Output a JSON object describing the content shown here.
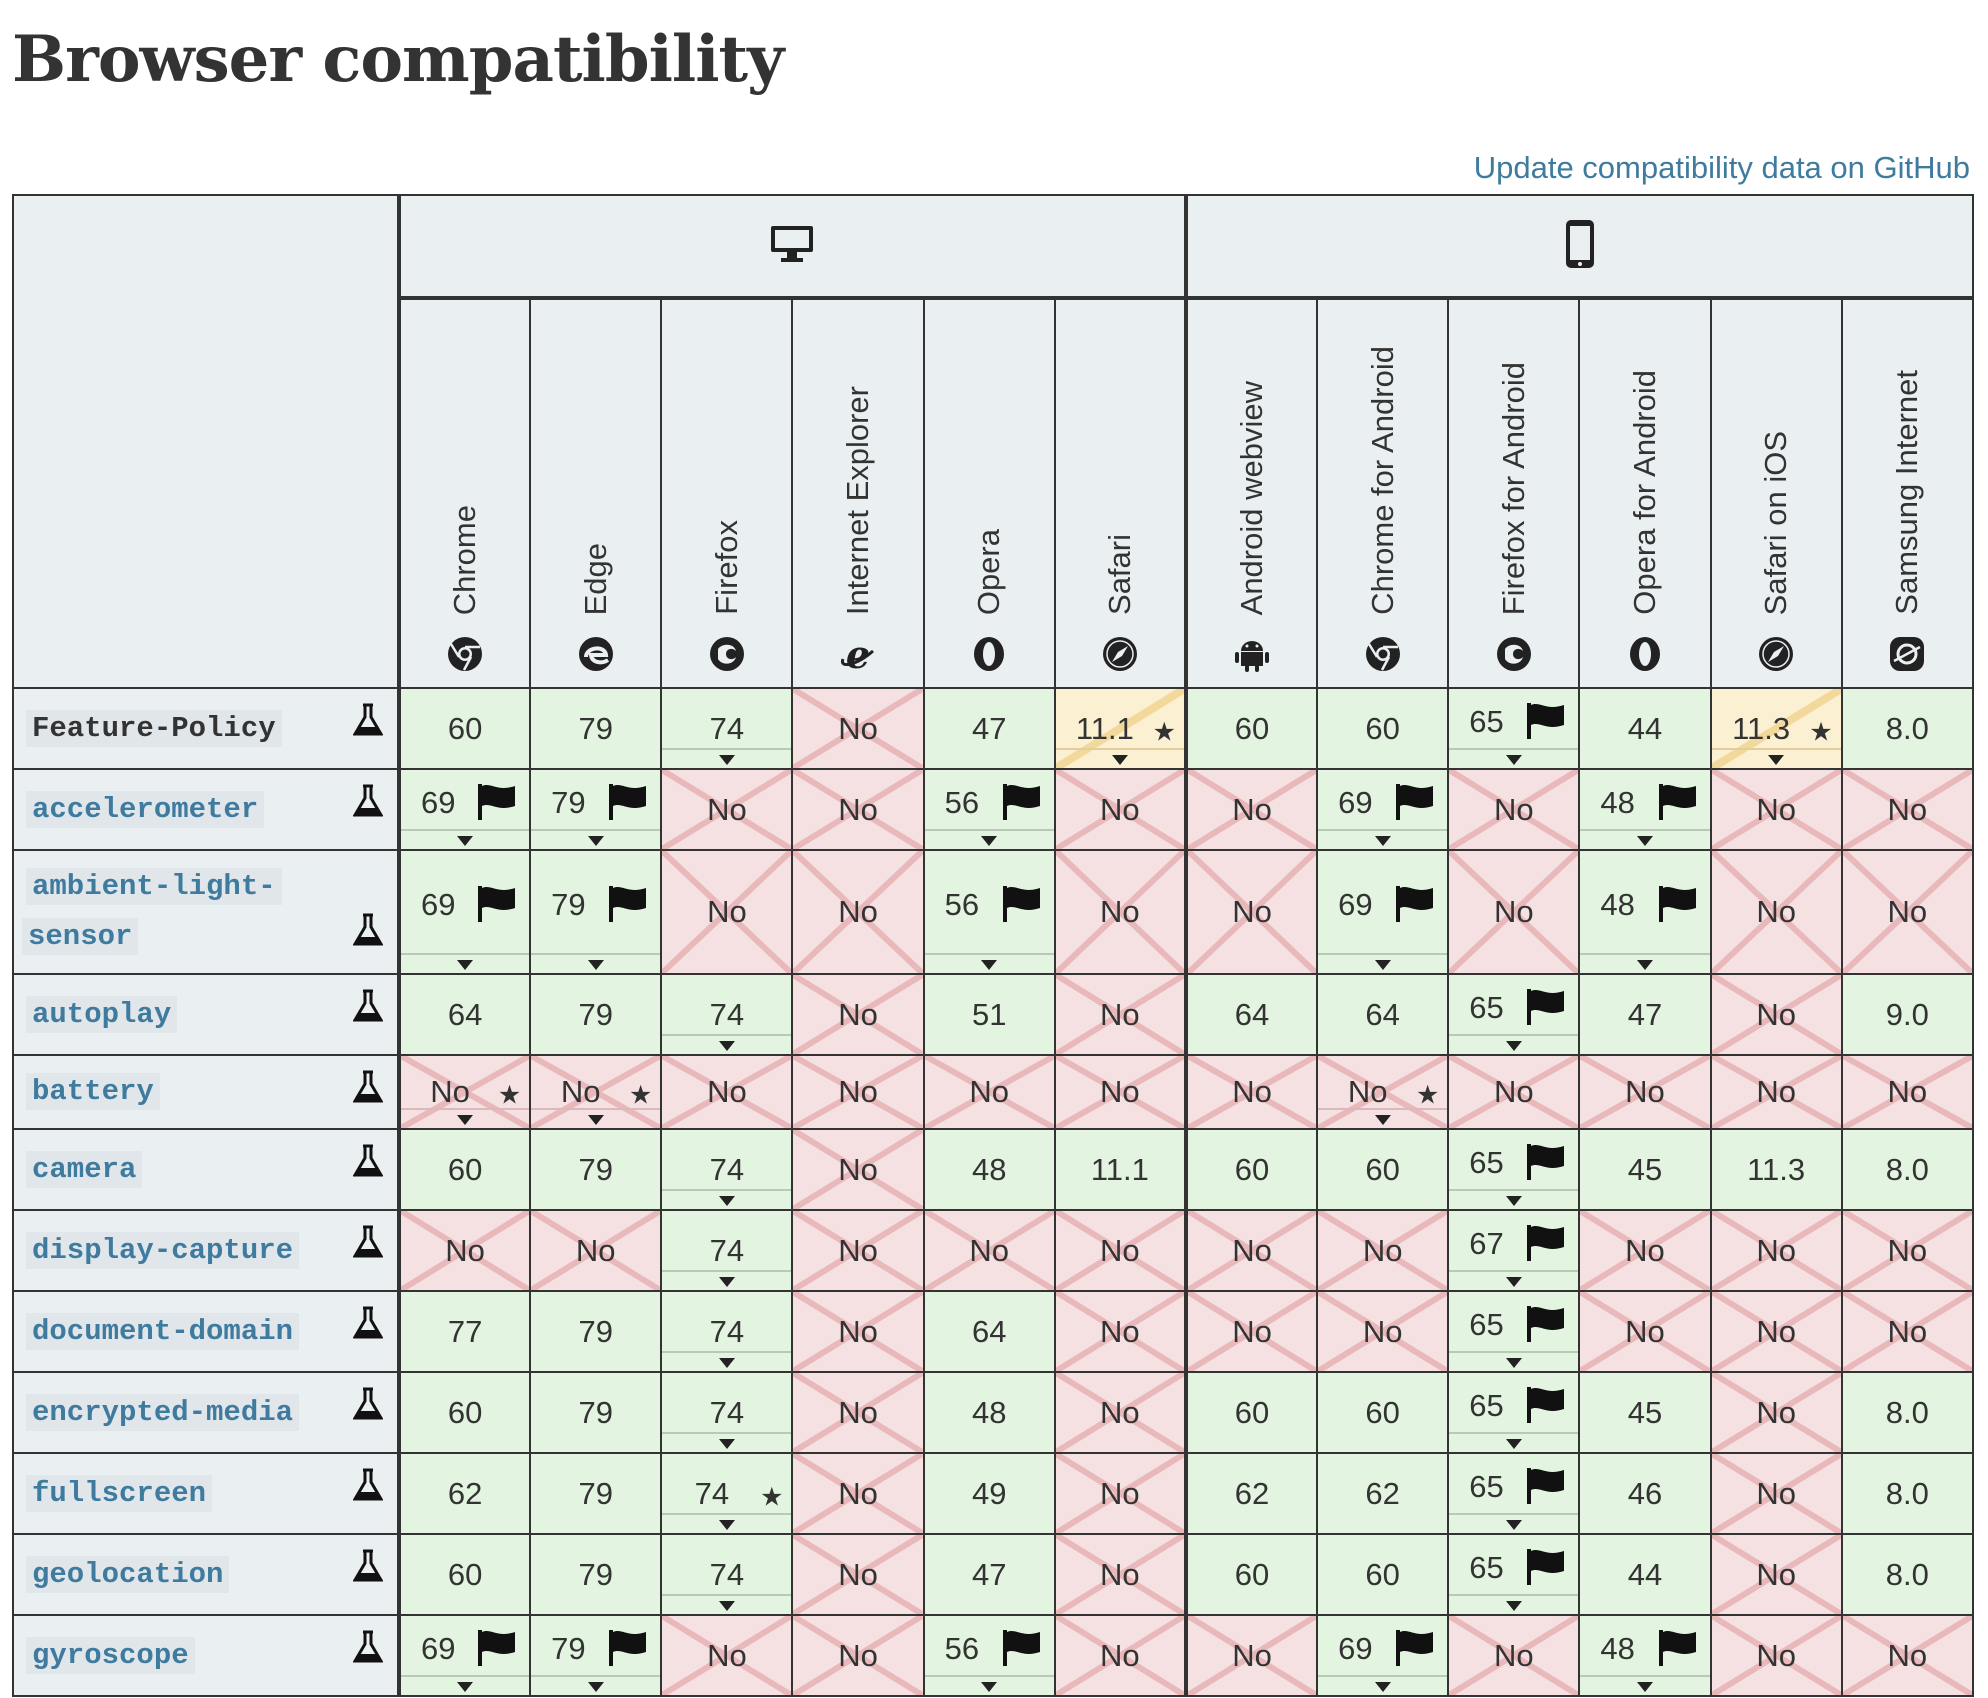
{
  "title": "Browser compatibility",
  "update_link": "Update compatibility data on GitHub",
  "platforms": {
    "desktop": "desktop-icon",
    "mobile": "mobile-icon"
  },
  "browsers": [
    {
      "name": "Chrome",
      "icon": "chrome-icon"
    },
    {
      "name": "Edge",
      "icon": "edge-icon"
    },
    {
      "name": "Firefox",
      "icon": "firefox-icon"
    },
    {
      "name": "Internet Explorer",
      "icon": "ie-icon"
    },
    {
      "name": "Opera",
      "icon": "opera-icon"
    },
    {
      "name": "Safari",
      "icon": "safari-icon"
    },
    {
      "name": "Android webview",
      "icon": "android-icon"
    },
    {
      "name": "Chrome for Android",
      "icon": "chrome-icon"
    },
    {
      "name": "Firefox for Android",
      "icon": "firefox-icon"
    },
    {
      "name": "Opera for Android",
      "icon": "opera-icon"
    },
    {
      "name": "Safari on iOS",
      "icon": "safari-icon"
    },
    {
      "name": "Samsung Internet",
      "icon": "samsung-icon"
    }
  ],
  "rows": [
    {
      "feature": "Feature-Policy",
      "link": false,
      "cells": [
        {
          "v": "60",
          "s": "yes"
        },
        {
          "v": "79",
          "s": "yes"
        },
        {
          "v": "74",
          "s": "yes",
          "drop": true
        },
        {
          "v": "No",
          "s": "no"
        },
        {
          "v": "47",
          "s": "yes"
        },
        {
          "v": "11.1",
          "s": "partial",
          "star": true,
          "drop": true
        },
        {
          "v": "60",
          "s": "yes"
        },
        {
          "v": "60",
          "s": "yes"
        },
        {
          "v": "65",
          "s": "yes",
          "flag": true,
          "drop": true
        },
        {
          "v": "44",
          "s": "yes"
        },
        {
          "v": "11.3",
          "s": "partial",
          "star": true,
          "drop": true
        },
        {
          "v": "8.0",
          "s": "yes"
        }
      ]
    },
    {
      "feature": "accelerometer",
      "link": true,
      "cells": [
        {
          "v": "69",
          "s": "yes",
          "flag": true,
          "drop": true
        },
        {
          "v": "79",
          "s": "yes",
          "flag": true,
          "drop": true
        },
        {
          "v": "No",
          "s": "no"
        },
        {
          "v": "No",
          "s": "no"
        },
        {
          "v": "56",
          "s": "yes",
          "flag": true,
          "drop": true
        },
        {
          "v": "No",
          "s": "no"
        },
        {
          "v": "No",
          "s": "no"
        },
        {
          "v": "69",
          "s": "yes",
          "flag": true,
          "drop": true
        },
        {
          "v": "No",
          "s": "no"
        },
        {
          "v": "48",
          "s": "yes",
          "flag": true,
          "drop": true
        },
        {
          "v": "No",
          "s": "no"
        },
        {
          "v": "No",
          "s": "no"
        }
      ]
    },
    {
      "feature": "ambient-light-sensor",
      "feature_l1": "ambient-light-",
      "feature_l2": "sensor",
      "link": true,
      "tall": true,
      "cells": [
        {
          "v": "69",
          "s": "yes",
          "flag": true,
          "drop": true
        },
        {
          "v": "79",
          "s": "yes",
          "flag": true,
          "drop": true
        },
        {
          "v": "No",
          "s": "no"
        },
        {
          "v": "No",
          "s": "no"
        },
        {
          "v": "56",
          "s": "yes",
          "flag": true,
          "drop": true
        },
        {
          "v": "No",
          "s": "no"
        },
        {
          "v": "No",
          "s": "no"
        },
        {
          "v": "69",
          "s": "yes",
          "flag": true,
          "drop": true
        },
        {
          "v": "No",
          "s": "no"
        },
        {
          "v": "48",
          "s": "yes",
          "flag": true,
          "drop": true
        },
        {
          "v": "No",
          "s": "no"
        },
        {
          "v": "No",
          "s": "no"
        }
      ]
    },
    {
      "feature": "autoplay",
      "link": true,
      "cells": [
        {
          "v": "64",
          "s": "yes"
        },
        {
          "v": "79",
          "s": "yes"
        },
        {
          "v": "74",
          "s": "yes",
          "drop": true
        },
        {
          "v": "No",
          "s": "no"
        },
        {
          "v": "51",
          "s": "yes"
        },
        {
          "v": "No",
          "s": "no"
        },
        {
          "v": "64",
          "s": "yes"
        },
        {
          "v": "64",
          "s": "yes"
        },
        {
          "v": "65",
          "s": "yes",
          "flag": true,
          "drop": true
        },
        {
          "v": "47",
          "s": "yes"
        },
        {
          "v": "No",
          "s": "no"
        },
        {
          "v": "9.0",
          "s": "yes"
        }
      ]
    },
    {
      "feature": "battery",
      "link": true,
      "cells": [
        {
          "v": "No",
          "s": "no",
          "star": true,
          "drop": true
        },
        {
          "v": "No",
          "s": "no",
          "star": true,
          "drop": true
        },
        {
          "v": "No",
          "s": "no"
        },
        {
          "v": "No",
          "s": "no"
        },
        {
          "v": "No",
          "s": "no"
        },
        {
          "v": "No",
          "s": "no"
        },
        {
          "v": "No",
          "s": "no"
        },
        {
          "v": "No",
          "s": "no",
          "star": true,
          "drop": true
        },
        {
          "v": "No",
          "s": "no"
        },
        {
          "v": "No",
          "s": "no"
        },
        {
          "v": "No",
          "s": "no"
        },
        {
          "v": "No",
          "s": "no"
        }
      ]
    },
    {
      "feature": "camera",
      "link": true,
      "cells": [
        {
          "v": "60",
          "s": "yes"
        },
        {
          "v": "79",
          "s": "yes"
        },
        {
          "v": "74",
          "s": "yes",
          "drop": true
        },
        {
          "v": "No",
          "s": "no"
        },
        {
          "v": "48",
          "s": "yes"
        },
        {
          "v": "11.1",
          "s": "yes"
        },
        {
          "v": "60",
          "s": "yes"
        },
        {
          "v": "60",
          "s": "yes"
        },
        {
          "v": "65",
          "s": "yes",
          "flag": true,
          "drop": true
        },
        {
          "v": "45",
          "s": "yes"
        },
        {
          "v": "11.3",
          "s": "yes"
        },
        {
          "v": "8.0",
          "s": "yes"
        }
      ]
    },
    {
      "feature": "display-capture",
      "link": true,
      "cells": [
        {
          "v": "No",
          "s": "no"
        },
        {
          "v": "No",
          "s": "no"
        },
        {
          "v": "74",
          "s": "yes",
          "drop": true
        },
        {
          "v": "No",
          "s": "no"
        },
        {
          "v": "No",
          "s": "no"
        },
        {
          "v": "No",
          "s": "no"
        },
        {
          "v": "No",
          "s": "no"
        },
        {
          "v": "No",
          "s": "no"
        },
        {
          "v": "67",
          "s": "yes",
          "flag": true,
          "drop": true
        },
        {
          "v": "No",
          "s": "no"
        },
        {
          "v": "No",
          "s": "no"
        },
        {
          "v": "No",
          "s": "no"
        }
      ]
    },
    {
      "feature": "document-domain",
      "link": true,
      "cells": [
        {
          "v": "77",
          "s": "yes"
        },
        {
          "v": "79",
          "s": "yes"
        },
        {
          "v": "74",
          "s": "yes",
          "drop": true
        },
        {
          "v": "No",
          "s": "no"
        },
        {
          "v": "64",
          "s": "yes"
        },
        {
          "v": "No",
          "s": "no"
        },
        {
          "v": "No",
          "s": "no"
        },
        {
          "v": "No",
          "s": "no"
        },
        {
          "v": "65",
          "s": "yes",
          "flag": true,
          "drop": true
        },
        {
          "v": "No",
          "s": "no"
        },
        {
          "v": "No",
          "s": "no"
        },
        {
          "v": "No",
          "s": "no"
        }
      ]
    },
    {
      "feature": "encrypted-media",
      "link": true,
      "cells": [
        {
          "v": "60",
          "s": "yes"
        },
        {
          "v": "79",
          "s": "yes"
        },
        {
          "v": "74",
          "s": "yes",
          "drop": true
        },
        {
          "v": "No",
          "s": "no"
        },
        {
          "v": "48",
          "s": "yes"
        },
        {
          "v": "No",
          "s": "no"
        },
        {
          "v": "60",
          "s": "yes"
        },
        {
          "v": "60",
          "s": "yes"
        },
        {
          "v": "65",
          "s": "yes",
          "flag": true,
          "drop": true
        },
        {
          "v": "45",
          "s": "yes"
        },
        {
          "v": "No",
          "s": "no"
        },
        {
          "v": "8.0",
          "s": "yes"
        }
      ]
    },
    {
      "feature": "fullscreen",
      "link": true,
      "cells": [
        {
          "v": "62",
          "s": "yes"
        },
        {
          "v": "79",
          "s": "yes"
        },
        {
          "v": "74",
          "s": "yes",
          "star": true,
          "drop": true
        },
        {
          "v": "No",
          "s": "no"
        },
        {
          "v": "49",
          "s": "yes"
        },
        {
          "v": "No",
          "s": "no"
        },
        {
          "v": "62",
          "s": "yes"
        },
        {
          "v": "62",
          "s": "yes"
        },
        {
          "v": "65",
          "s": "yes",
          "flag": true,
          "drop": true
        },
        {
          "v": "46",
          "s": "yes"
        },
        {
          "v": "No",
          "s": "no"
        },
        {
          "v": "8.0",
          "s": "yes"
        }
      ]
    },
    {
      "feature": "geolocation",
      "link": true,
      "cells": [
        {
          "v": "60",
          "s": "yes"
        },
        {
          "v": "79",
          "s": "yes"
        },
        {
          "v": "74",
          "s": "yes",
          "drop": true
        },
        {
          "v": "No",
          "s": "no"
        },
        {
          "v": "47",
          "s": "yes"
        },
        {
          "v": "No",
          "s": "no"
        },
        {
          "v": "60",
          "s": "yes"
        },
        {
          "v": "60",
          "s": "yes"
        },
        {
          "v": "65",
          "s": "yes",
          "flag": true,
          "drop": true
        },
        {
          "v": "44",
          "s": "yes"
        },
        {
          "v": "No",
          "s": "no"
        },
        {
          "v": "8.0",
          "s": "yes"
        }
      ]
    },
    {
      "feature": "gyroscope",
      "link": true,
      "cells": [
        {
          "v": "69",
          "s": "yes",
          "flag": true,
          "drop": true
        },
        {
          "v": "79",
          "s": "yes",
          "flag": true,
          "drop": true
        },
        {
          "v": "No",
          "s": "no"
        },
        {
          "v": "No",
          "s": "no"
        },
        {
          "v": "56",
          "s": "yes",
          "flag": true,
          "drop": true
        },
        {
          "v": "No",
          "s": "no"
        },
        {
          "v": "No",
          "s": "no"
        },
        {
          "v": "69",
          "s": "yes",
          "flag": true,
          "drop": true
        },
        {
          "v": "No",
          "s": "no"
        },
        {
          "v": "48",
          "s": "yes",
          "flag": true,
          "drop": true
        },
        {
          "v": "No",
          "s": "no"
        },
        {
          "v": "No",
          "s": "no"
        }
      ]
    }
  ]
}
